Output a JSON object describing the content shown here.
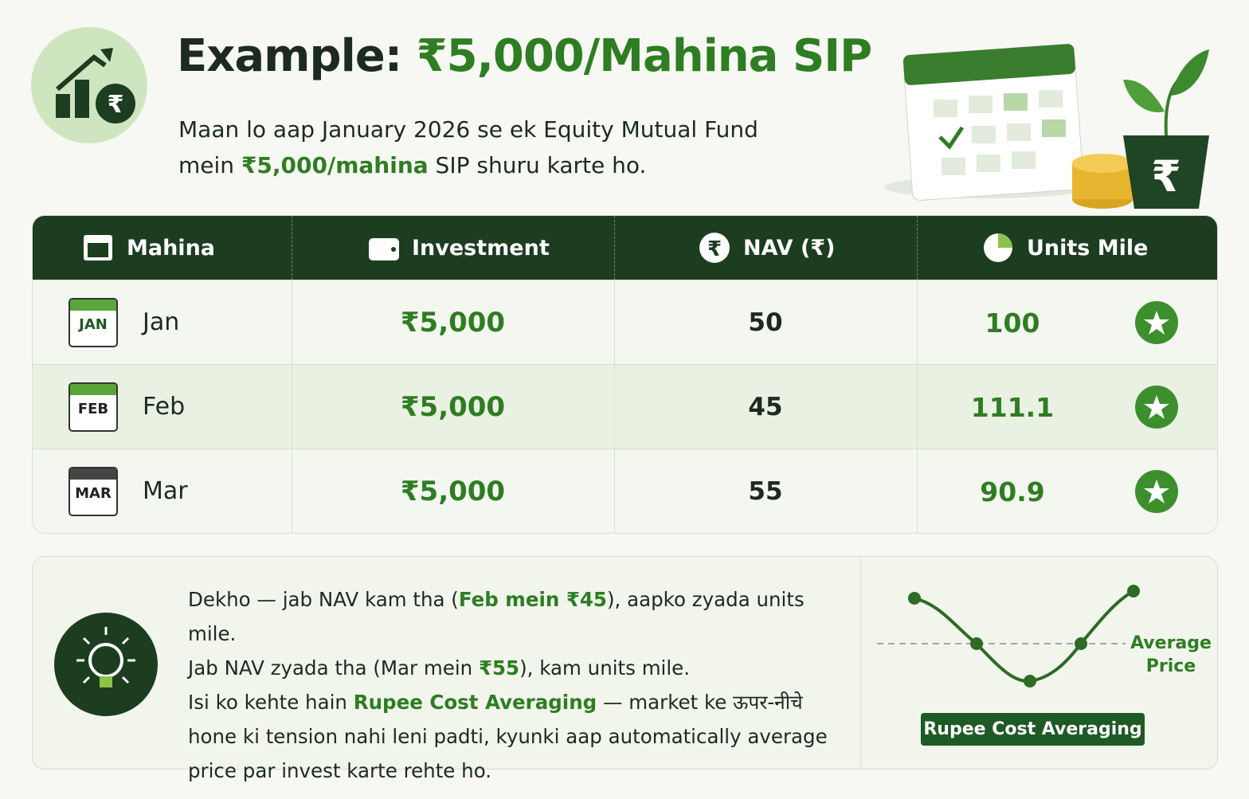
{
  "header": {
    "title_prefix": "Example:",
    "title_highlight": "₹5,000/Mahina SIP",
    "intro": [
      {
        "text": "Maan lo aap January 2026 se ek Equity Mutual Fund mein "
      },
      {
        "text": "₹5,000/mahina",
        "em": true
      },
      {
        "text": " SIP shuru karte ho."
      }
    ]
  },
  "table": {
    "columns": [
      "Mahina",
      "Investment",
      "NAV (₹)",
      "Units Mile"
    ],
    "rows": [
      {
        "badge": "JAN",
        "month": "Jan",
        "investment": "₹5,000",
        "nav": 50,
        "units": 100
      },
      {
        "badge": "FEB",
        "month": "Feb",
        "investment": "₹5,000",
        "nav": 45,
        "units": 111.1
      },
      {
        "badge": "MAR",
        "month": "Mar",
        "investment": "₹5,000",
        "nav": 55,
        "units": 90.9
      }
    ]
  },
  "note": {
    "sentences": [
      [
        {
          "text": "Dekho — jab NAV kam tha ("
        },
        {
          "text": "Feb mein ₹45",
          "em": true
        },
        {
          "text": "), aapko zyada units mile."
        }
      ],
      [
        {
          "text": "Jab NAV zyada tha (Mar mein "
        },
        {
          "text": "₹55",
          "em": true
        },
        {
          "text": "), kam units mile."
        }
      ],
      [
        {
          "text": "Isi ko kehte hain "
        },
        {
          "text": "Rupee Cost Averaging",
          "em": true
        },
        {
          "text": " — market ke ऊपर-नीचे hone ki tension nahi leni padti, kyunki aap automatically average price par invest karte rehte ho."
        }
      ]
    ],
    "chart_label_line1": "Average",
    "chart_label_line2": "Price",
    "badge": "Rupee Cost Averaging"
  }
}
